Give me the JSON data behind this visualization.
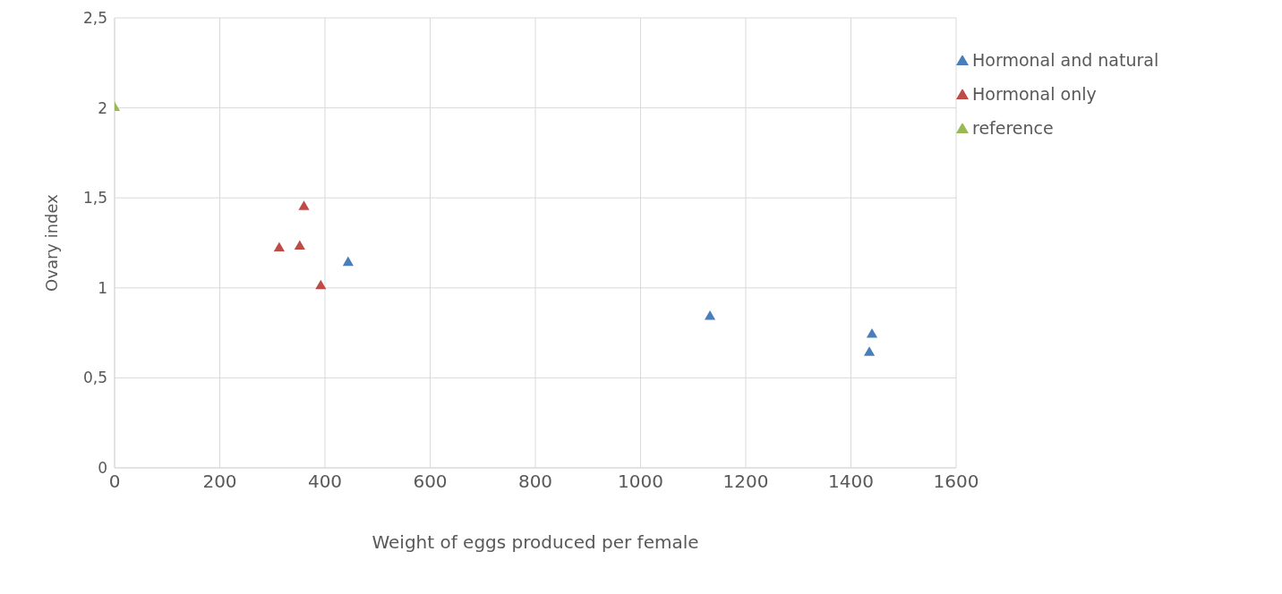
{
  "chart_data": {
    "type": "scatter",
    "xlabel": "Weight of eggs produced per female",
    "ylabel": "Ovary index",
    "xlim": [
      0,
      1600
    ],
    "xticks": [
      0,
      200,
      400,
      600,
      800,
      1000,
      1200,
      1400,
      1600
    ],
    "ylim": [
      0,
      2.5
    ],
    "yticks": [
      0,
      {
        "value": 0.5,
        "label": "0,5"
      },
      1,
      {
        "value": 1.5,
        "label": "1,5"
      },
      2,
      {
        "value": 2.5,
        "label": "2,5"
      }
    ],
    "grid": true,
    "legend": "top right",
    "marker": "triangle",
    "series": [
      {
        "name": "Hormonal and natural",
        "color": "#4a7ebb",
        "x": [
          444,
          1132,
          1440,
          1435
        ],
        "values": [
          1.14,
          0.84,
          0.74,
          0.64
        ]
      },
      {
        "name": "Hormonal only",
        "color": "#be4b48",
        "x": [
          313,
          352,
          360,
          392
        ],
        "values": [
          1.22,
          1.23,
          1.45,
          1.01
        ]
      },
      {
        "name": "reference",
        "color": "#98b954",
        "x": [
          0
        ],
        "values": [
          2.0
        ]
      }
    ]
  }
}
